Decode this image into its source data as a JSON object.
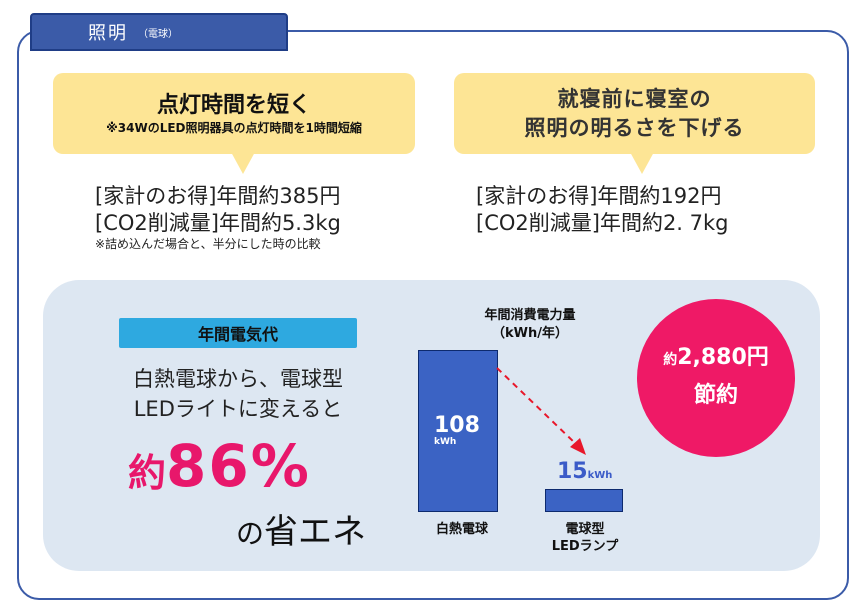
{
  "tab": {
    "title": "照明",
    "subtitle": "（電球）"
  },
  "tip_left": {
    "title": "点灯時間を短く",
    "note": "※34WのLED照明器具の点灯時間を1時間短縮",
    "savings_money": "[家計のお得]年間約385円",
    "savings_co2": "[CO2削減量]年間約5.3kg",
    "footnote": "※詰め込んだ場合と、半分にした時の比較"
  },
  "tip_right": {
    "title_line1": "就寝前に寝室の",
    "title_line2": "照明の明るさを下げる",
    "savings_money": "[家計のお得]年間約192円",
    "savings_co2": "[CO2削減量]年間約2. 7kg"
  },
  "annual": {
    "label": "年間電気代",
    "desc_line1": "白熱電球から、電球型",
    "desc_line2": "LEDライトに変えると",
    "percent_prefix": "約",
    "percent_value": "86%",
    "conclusion_prefix": "の",
    "conclusion_main": "省エネ"
  },
  "chart_data": {
    "type": "bar",
    "title_line1": "年間消費電力量",
    "title_line2": "（kWh/年）",
    "categories": [
      "白熱電球",
      "電球型 LEDランプ"
    ],
    "category_lines": [
      [
        "白熱電球"
      ],
      [
        "電球型",
        "LEDランプ"
      ]
    ],
    "values": [
      108,
      15
    ],
    "value_labels": [
      "108",
      "15"
    ],
    "unit": "kWh",
    "ylim": [
      0,
      108
    ],
    "bar_color": "#3b63c4",
    "arrow_color": "#e8172b"
  },
  "circle": {
    "prefix": "約",
    "amount": "2,880円",
    "label": "節約",
    "color": "#ef1966"
  },
  "colors": {
    "frame": "#3b5ba8",
    "bubble": "#fde595",
    "panel": "#dde7f2",
    "label_bg": "#2ea9e0",
    "accent": "#e8176b"
  }
}
